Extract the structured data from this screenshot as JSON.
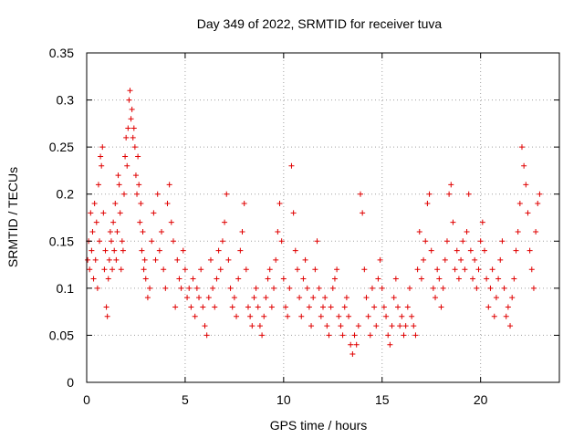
{
  "chart_data": {
    "type": "scatter",
    "title": "Day 349 of 2022, SRMTID for receiver tuva",
    "xlabel": "GPS time / hours",
    "ylabel": "SRMTID / TECUs",
    "xlim": [
      0,
      24
    ],
    "ylim": [
      0,
      0.35
    ],
    "xticks": [
      0,
      5,
      10,
      15,
      20
    ],
    "xtick_labels": [
      "0",
      "5",
      "10",
      "15",
      "20"
    ],
    "yticks": [
      0,
      0.05,
      0.1,
      0.15,
      0.2,
      0.25,
      0.3,
      0.35
    ],
    "ytick_labels": [
      "0",
      "0.05",
      "0.1",
      "0.15",
      "0.2",
      "0.25",
      "0.3",
      "0.35"
    ],
    "grid": true,
    "marker": "+",
    "marker_color": "#e00000",
    "series": [
      {
        "name": "SRMTID",
        "points": [
          [
            0.05,
            0.13
          ],
          [
            0.1,
            0.15
          ],
          [
            0.15,
            0.12
          ],
          [
            0.2,
            0.18
          ],
          [
            0.25,
            0.14
          ],
          [
            0.3,
            0.16
          ],
          [
            0.35,
            0.11
          ],
          [
            0.4,
            0.19
          ],
          [
            0.45,
            0.13
          ],
          [
            0.5,
            0.17
          ],
          [
            0.55,
            0.1
          ],
          [
            0.6,
            0.21
          ],
          [
            0.65,
            0.15
          ],
          [
            0.7,
            0.24
          ],
          [
            0.75,
            0.23
          ],
          [
            0.8,
            0.25
          ],
          [
            0.85,
            0.18
          ],
          [
            0.9,
            0.12
          ],
          [
            0.95,
            0.14
          ],
          [
            1.0,
            0.08
          ],
          [
            1.05,
            0.07
          ],
          [
            1.1,
            0.11
          ],
          [
            1.15,
            0.13
          ],
          [
            1.2,
            0.16
          ],
          [
            1.25,
            0.15
          ],
          [
            1.3,
            0.12
          ],
          [
            1.35,
            0.17
          ],
          [
            1.4,
            0.14
          ],
          [
            1.45,
            0.19
          ],
          [
            1.5,
            0.13
          ],
          [
            1.55,
            0.16
          ],
          [
            1.6,
            0.22
          ],
          [
            1.65,
            0.21
          ],
          [
            1.7,
            0.18
          ],
          [
            1.75,
            0.12
          ],
          [
            1.8,
            0.15
          ],
          [
            1.85,
            0.14
          ],
          [
            1.9,
            0.2
          ],
          [
            1.95,
            0.24
          ],
          [
            2.0,
            0.26
          ],
          [
            2.05,
            0.23
          ],
          [
            2.1,
            0.27
          ],
          [
            2.15,
            0.3
          ],
          [
            2.2,
            0.31
          ],
          [
            2.25,
            0.28
          ],
          [
            2.3,
            0.29
          ],
          [
            2.35,
            0.26
          ],
          [
            2.4,
            0.27
          ],
          [
            2.45,
            0.25
          ],
          [
            2.5,
            0.22
          ],
          [
            2.55,
            0.2
          ],
          [
            2.6,
            0.24
          ],
          [
            2.65,
            0.21
          ],
          [
            2.7,
            0.17
          ],
          [
            2.75,
            0.19
          ],
          [
            2.8,
            0.14
          ],
          [
            2.85,
            0.16
          ],
          [
            2.9,
            0.12
          ],
          [
            2.95,
            0.13
          ],
          [
            3.0,
            0.11
          ],
          [
            3.1,
            0.09
          ],
          [
            3.2,
            0.1
          ],
          [
            3.3,
            0.15
          ],
          [
            3.4,
            0.18
          ],
          [
            3.5,
            0.13
          ],
          [
            3.6,
            0.2
          ],
          [
            3.7,
            0.14
          ],
          [
            3.8,
            0.16
          ],
          [
            3.9,
            0.12
          ],
          [
            4.0,
            0.1
          ],
          [
            4.1,
            0.19
          ],
          [
            4.2,
            0.21
          ],
          [
            4.3,
            0.17
          ],
          [
            4.4,
            0.15
          ],
          [
            4.5,
            0.08
          ],
          [
            4.6,
            0.13
          ],
          [
            4.7,
            0.11
          ],
          [
            4.8,
            0.1
          ],
          [
            4.9,
            0.14
          ],
          [
            5.0,
            0.12
          ],
          [
            5.1,
            0.09
          ],
          [
            5.2,
            0.1
          ],
          [
            5.3,
            0.08
          ],
          [
            5.4,
            0.11
          ],
          [
            5.5,
            0.07
          ],
          [
            5.6,
            0.1
          ],
          [
            5.7,
            0.09
          ],
          [
            5.8,
            0.12
          ],
          [
            5.9,
            0.08
          ],
          [
            6.0,
            0.06
          ],
          [
            6.1,
            0.05
          ],
          [
            6.2,
            0.09
          ],
          [
            6.3,
            0.13
          ],
          [
            6.4,
            0.1
          ],
          [
            6.5,
            0.08
          ],
          [
            6.6,
            0.11
          ],
          [
            6.7,
            0.14
          ],
          [
            6.8,
            0.12
          ],
          [
            6.9,
            0.15
          ],
          [
            7.0,
            0.17
          ],
          [
            7.1,
            0.2
          ],
          [
            7.2,
            0.13
          ],
          [
            7.3,
            0.1
          ],
          [
            7.4,
            0.08
          ],
          [
            7.5,
            0.09
          ],
          [
            7.6,
            0.07
          ],
          [
            7.7,
            0.11
          ],
          [
            7.8,
            0.14
          ],
          [
            7.9,
            0.16
          ],
          [
            8.0,
            0.19
          ],
          [
            8.1,
            0.12
          ],
          [
            8.2,
            0.08
          ],
          [
            8.3,
            0.07
          ],
          [
            8.4,
            0.06
          ],
          [
            8.5,
            0.09
          ],
          [
            8.6,
            0.1
          ],
          [
            8.7,
            0.08
          ],
          [
            8.8,
            0.06
          ],
          [
            8.9,
            0.05
          ],
          [
            9.0,
            0.07
          ],
          [
            9.1,
            0.09
          ],
          [
            9.2,
            0.11
          ],
          [
            9.3,
            0.12
          ],
          [
            9.4,
            0.08
          ],
          [
            9.5,
            0.1
          ],
          [
            9.6,
            0.13
          ],
          [
            9.7,
            0.16
          ],
          [
            9.8,
            0.19
          ],
          [
            9.9,
            0.15
          ],
          [
            10.0,
            0.11
          ],
          [
            10.1,
            0.08
          ],
          [
            10.2,
            0.07
          ],
          [
            10.3,
            0.1
          ],
          [
            10.4,
            0.23
          ],
          [
            10.5,
            0.18
          ],
          [
            10.6,
            0.14
          ],
          [
            10.7,
            0.12
          ],
          [
            10.8,
            0.09
          ],
          [
            10.9,
            0.07
          ],
          [
            11.0,
            0.11
          ],
          [
            11.1,
            0.13
          ],
          [
            11.2,
            0.1
          ],
          [
            11.3,
            0.08
          ],
          [
            11.4,
            0.06
          ],
          [
            11.5,
            0.09
          ],
          [
            11.6,
            0.12
          ],
          [
            11.7,
            0.15
          ],
          [
            11.8,
            0.1
          ],
          [
            11.9,
            0.07
          ],
          [
            12.0,
            0.08
          ],
          [
            12.1,
            0.09
          ],
          [
            12.2,
            0.06
          ],
          [
            12.3,
            0.05
          ],
          [
            12.4,
            0.08
          ],
          [
            12.5,
            0.1
          ],
          [
            12.6,
            0.11
          ],
          [
            12.7,
            0.12
          ],
          [
            12.8,
            0.07
          ],
          [
            12.9,
            0.06
          ],
          [
            13.0,
            0.05
          ],
          [
            13.1,
            0.08
          ],
          [
            13.2,
            0.09
          ],
          [
            13.3,
            0.07
          ],
          [
            13.4,
            0.04
          ],
          [
            13.5,
            0.03
          ],
          [
            13.6,
            0.05
          ],
          [
            13.7,
            0.04
          ],
          [
            13.8,
            0.06
          ],
          [
            13.9,
            0.2
          ],
          [
            14.0,
            0.18
          ],
          [
            14.1,
            0.12
          ],
          [
            14.2,
            0.09
          ],
          [
            14.3,
            0.07
          ],
          [
            14.4,
            0.05
          ],
          [
            14.5,
            0.1
          ],
          [
            14.6,
            0.08
          ],
          [
            14.7,
            0.06
          ],
          [
            14.8,
            0.11
          ],
          [
            14.9,
            0.13
          ],
          [
            15.0,
            0.1
          ],
          [
            15.1,
            0.08
          ],
          [
            15.2,
            0.07
          ],
          [
            15.3,
            0.05
          ],
          [
            15.4,
            0.04
          ],
          [
            15.5,
            0.06
          ],
          [
            15.6,
            0.09
          ],
          [
            15.7,
            0.11
          ],
          [
            15.8,
            0.08
          ],
          [
            15.9,
            0.06
          ],
          [
            16.0,
            0.07
          ],
          [
            16.1,
            0.05
          ],
          [
            16.2,
            0.06
          ],
          [
            16.3,
            0.08
          ],
          [
            16.4,
            0.1
          ],
          [
            16.5,
            0.07
          ],
          [
            16.6,
            0.06
          ],
          [
            16.7,
            0.05
          ],
          [
            16.8,
            0.12
          ],
          [
            16.9,
            0.16
          ],
          [
            17.0,
            0.11
          ],
          [
            17.1,
            0.13
          ],
          [
            17.2,
            0.15
          ],
          [
            17.3,
            0.19
          ],
          [
            17.4,
            0.2
          ],
          [
            17.5,
            0.14
          ],
          [
            17.6,
            0.1
          ],
          [
            17.7,
            0.09
          ],
          [
            17.8,
            0.12
          ],
          [
            17.9,
            0.11
          ],
          [
            18.0,
            0.08
          ],
          [
            18.1,
            0.1
          ],
          [
            18.2,
            0.13
          ],
          [
            18.3,
            0.15
          ],
          [
            18.4,
            0.2
          ],
          [
            18.5,
            0.21
          ],
          [
            18.6,
            0.17
          ],
          [
            18.7,
            0.12
          ],
          [
            18.8,
            0.14
          ],
          [
            18.9,
            0.11
          ],
          [
            19.0,
            0.13
          ],
          [
            19.1,
            0.15
          ],
          [
            19.2,
            0.12
          ],
          [
            19.3,
            0.16
          ],
          [
            19.4,
            0.2
          ],
          [
            19.5,
            0.14
          ],
          [
            19.6,
            0.11
          ],
          [
            19.7,
            0.13
          ],
          [
            19.8,
            0.1
          ],
          [
            19.9,
            0.12
          ],
          [
            20.0,
            0.15
          ],
          [
            20.1,
            0.17
          ],
          [
            20.2,
            0.14
          ],
          [
            20.3,
            0.11
          ],
          [
            20.4,
            0.08
          ],
          [
            20.5,
            0.1
          ],
          [
            20.6,
            0.12
          ],
          [
            20.7,
            0.07
          ],
          [
            20.8,
            0.09
          ],
          [
            20.9,
            0.11
          ],
          [
            21.0,
            0.13
          ],
          [
            21.1,
            0.15
          ],
          [
            21.2,
            0.1
          ],
          [
            21.3,
            0.07
          ],
          [
            21.4,
            0.08
          ],
          [
            21.5,
            0.06
          ],
          [
            21.6,
            0.09
          ],
          [
            21.7,
            0.11
          ],
          [
            21.8,
            0.14
          ],
          [
            21.9,
            0.16
          ],
          [
            22.0,
            0.19
          ],
          [
            22.1,
            0.25
          ],
          [
            22.2,
            0.23
          ],
          [
            22.3,
            0.21
          ],
          [
            22.4,
            0.18
          ],
          [
            22.5,
            0.14
          ],
          [
            22.6,
            0.12
          ],
          [
            22.7,
            0.1
          ],
          [
            22.8,
            0.16
          ],
          [
            22.9,
            0.19
          ],
          [
            23.0,
            0.2
          ]
        ]
      }
    ]
  }
}
